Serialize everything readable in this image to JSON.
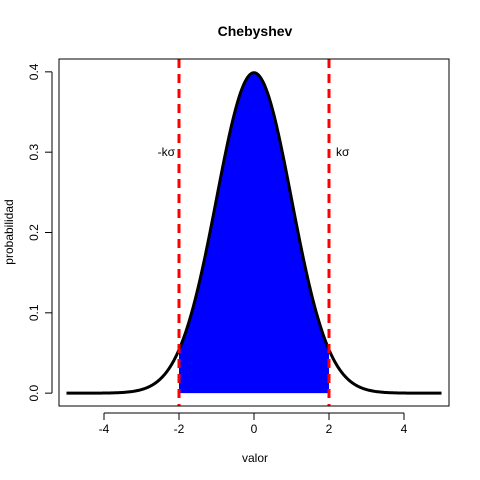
{
  "chart_data": {
    "type": "line",
    "title": "Chebyshev",
    "xlabel": "valor",
    "ylabel": "probabilidad",
    "xlim": [
      -5.2,
      5.2
    ],
    "ylim": [
      -0.016,
      0.416
    ],
    "x_ticks": [
      -4,
      -2,
      0,
      2,
      4
    ],
    "x_tick_labels": [
      "-4",
      "-2",
      "0",
      "2",
      "4"
    ],
    "y_ticks": [
      0.0,
      0.1,
      0.2,
      0.3,
      0.4
    ],
    "y_tick_labels": [
      "0.0",
      "0.1",
      "0.2",
      "0.3",
      "0.4"
    ],
    "grid": false,
    "series": [
      {
        "x": [
          -5,
          -4.5,
          -4,
          -3.5,
          -3,
          -2.5,
          -2,
          -1.75,
          -1.5,
          -1.25,
          -1,
          -0.75,
          -0.5,
          -0.25,
          0,
          0.25,
          0.5,
          0.75,
          1,
          1.25,
          1.5,
          1.75,
          2,
          2.5,
          3,
          3.5,
          4,
          4.5,
          5
        ],
        "y": [
          1.5e-06,
          1.6e-05,
          0.000134,
          0.000873,
          0.004432,
          0.017528,
          0.053991,
          0.086277,
          0.129518,
          0.182649,
          0.241971,
          0.301137,
          0.352065,
          0.386668,
          0.398942,
          0.386668,
          0.352065,
          0.301137,
          0.241971,
          0.182649,
          0.129518,
          0.086277,
          0.053991,
          0.017528,
          0.004432,
          0.000873,
          0.000134,
          1.6e-05,
          1.5e-06
        ],
        "color": "#000000"
      }
    ],
    "shaded_region": {
      "from": -2,
      "to": 2,
      "color": "#0000ff"
    },
    "vertical_lines": [
      {
        "x": -2,
        "label": "-kσ",
        "color": "#ff0000"
      },
      {
        "x": 2,
        "label": "kσ",
        "color": "#ff0000"
      }
    ],
    "annotation_y": 0.3
  }
}
